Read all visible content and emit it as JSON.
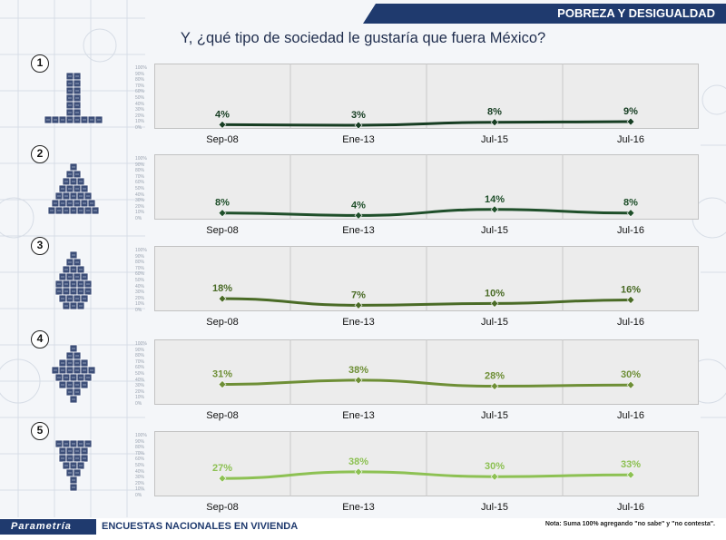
{
  "header": {
    "section_title": "POBREZA Y DESIGUALDAD"
  },
  "title": "Y, ¿qué tipo de sociedad le gustaría que fuera México?",
  "footer": {
    "brand": "Parametría",
    "survey": "ENCUESTAS NACIONALES EN VIVIENDA",
    "note": "Nota: Suma 100% agregando \"no sabe\" y \"no contesta\"."
  },
  "colors": {
    "header_bg": "#1f3a6e",
    "series": [
      "#163d22",
      "#1f4f2a",
      "#4a6b26",
      "#6e8f36",
      "#8dc153"
    ]
  },
  "chart_data": [
    {
      "type": "line",
      "panel_label": "1",
      "categories": [
        "Sep-08",
        "Ene-13",
        "Jul-15",
        "Jul-16"
      ],
      "values": [
        4,
        3,
        8,
        9
      ],
      "value_labels": [
        "4%",
        "3%",
        "8%",
        "9%"
      ],
      "ylim": [
        0,
        100
      ],
      "y_ticks": [
        "0%",
        "10%",
        "20%",
        "30%",
        "40%",
        "50%",
        "60%",
        "70%",
        "80%",
        "90%",
        "100%"
      ],
      "grid": true
    },
    {
      "type": "line",
      "panel_label": "2",
      "categories": [
        "Sep-08",
        "Ene-13",
        "Jul-15",
        "Jul-16"
      ],
      "values": [
        8,
        4,
        14,
        8
      ],
      "value_labels": [
        "8%",
        "4%",
        "14%",
        "8%"
      ],
      "ylim": [
        0,
        100
      ],
      "y_ticks": [
        "0%",
        "10%",
        "20%",
        "30%",
        "40%",
        "50%",
        "60%",
        "70%",
        "80%",
        "90%",
        "100%"
      ],
      "grid": true
    },
    {
      "type": "line",
      "panel_label": "3",
      "categories": [
        "Sep-08",
        "Ene-13",
        "Jul-15",
        "Jul-16"
      ],
      "values": [
        18,
        7,
        10,
        16
      ],
      "value_labels": [
        "18%",
        "7%",
        "10%",
        "16%"
      ],
      "ylim": [
        0,
        100
      ],
      "y_ticks": [
        "0%",
        "10%",
        "20%",
        "30%",
        "40%",
        "50%",
        "60%",
        "70%",
        "80%",
        "90%",
        "100%"
      ],
      "grid": true
    },
    {
      "type": "line",
      "panel_label": "4",
      "categories": [
        "Sep-08",
        "Ene-13",
        "Jul-15",
        "Jul-16"
      ],
      "values": [
        31,
        38,
        28,
        30
      ],
      "value_labels": [
        "31%",
        "38%",
        "28%",
        "30%"
      ],
      "ylim": [
        0,
        100
      ],
      "y_ticks": [
        "0%",
        "10%",
        "20%",
        "30%",
        "40%",
        "50%",
        "60%",
        "70%",
        "80%",
        "90%",
        "100%"
      ],
      "grid": true
    },
    {
      "type": "line",
      "panel_label": "5",
      "categories": [
        "Sep-08",
        "Ene-13",
        "Jul-15",
        "Jul-16"
      ],
      "values": [
        27,
        38,
        30,
        33
      ],
      "value_labels": [
        "27%",
        "38%",
        "30%",
        "33%"
      ],
      "ylim": [
        0,
        100
      ],
      "y_ticks": [
        "0%",
        "10%",
        "20%",
        "30%",
        "40%",
        "50%",
        "60%",
        "70%",
        "80%",
        "90%",
        "100%"
      ],
      "grid": true
    }
  ]
}
